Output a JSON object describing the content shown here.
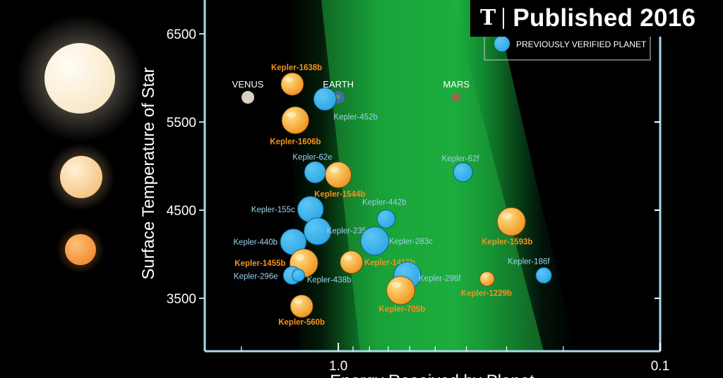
{
  "badge": {
    "logo": "T",
    "text": "Published 2016"
  },
  "colors": {
    "verified": "#2aa6e4",
    "kepler_new": "#f0901a",
    "axis": "#a8d8ec",
    "zone": "#1ea83c",
    "label_orange": "#f5921f",
    "label_blue": "#9fd0ec"
  },
  "chart_data": {
    "type": "scatter",
    "xlabel": "Energy Received by Planet",
    "ylabel": "Surface Temperature of Star",
    "xscale": "log-reversed",
    "xlim": [
      2.6,
      0.1
    ],
    "ylim": [
      2900,
      6900
    ],
    "x_ticks": [
      {
        "value": 1.0,
        "label": "1.0"
      },
      {
        "value": 0.1,
        "label": "0.1"
      }
    ],
    "y_ticks": [
      {
        "value": 6500,
        "label": "6500"
      },
      {
        "value": 5500,
        "label": "5500"
      },
      {
        "value": 4500,
        "label": "4500"
      },
      {
        "value": 3500,
        "label": "3500"
      }
    ],
    "legend": [
      {
        "label": "PREVIOUSLY VERIFIED PLANET",
        "kind": "verified"
      }
    ],
    "legend_position": "top-right",
    "stars": [
      {
        "kind": "hot",
        "temp": 6000
      },
      {
        "kind": "medium",
        "temp": 5000
      },
      {
        "kind": "cool",
        "temp": 4000
      }
    ],
    "solar_system": [
      {
        "name": "VENUS",
        "x": 1.91,
        "y": 5780
      },
      {
        "name": "EARTH",
        "x": 1.0,
        "y": 5780
      },
      {
        "name": "MARS",
        "x": 0.43,
        "y": 5780
      }
    ],
    "points": [
      {
        "name": "Kepler-1638b",
        "kind": "new",
        "x": 1.39,
        "y": 5930,
        "size": 1.0
      },
      {
        "name": "Kepler-452b",
        "kind": "verified",
        "x": 1.1,
        "y": 5760,
        "size": 1.0
      },
      {
        "name": "Kepler-1606b",
        "kind": "new",
        "x": 1.36,
        "y": 5520,
        "size": 1.2
      },
      {
        "name": "Kepler-62e",
        "kind": "verified",
        "x": 1.18,
        "y": 4930,
        "size": 0.95
      },
      {
        "name": "Kepler-1544b",
        "kind": "new",
        "x": 1.0,
        "y": 4900,
        "size": 1.15
      },
      {
        "name": "Kepler-62f",
        "kind": "verified",
        "x": 0.41,
        "y": 4930,
        "size": 0.85
      },
      {
        "name": "Kepler-155c",
        "kind": "verified",
        "x": 1.22,
        "y": 4510,
        "size": 1.15
      },
      {
        "name": "Kepler-442b",
        "kind": "verified",
        "x": 0.71,
        "y": 4400,
        "size": 0.8
      },
      {
        "name": "Kepler-235e",
        "kind": "verified",
        "x": 1.16,
        "y": 4260,
        "size": 1.2
      },
      {
        "name": "Kepler-440b",
        "kind": "verified",
        "x": 1.38,
        "y": 4140,
        "size": 1.15
      },
      {
        "name": "Kepler-283c",
        "kind": "verified",
        "x": 0.77,
        "y": 4150,
        "size": 1.25
      },
      {
        "name": "Kepler-1593b",
        "kind": "new",
        "x": 0.29,
        "y": 4370,
        "size": 1.25
      },
      {
        "name": "Kepler-1455b",
        "kind": "new",
        "x": 1.28,
        "y": 3900,
        "size": 1.25
      },
      {
        "name": "Kepler-1410b",
        "kind": "new",
        "x": 0.91,
        "y": 3910,
        "size": 1.0
      },
      {
        "name": "Kepler-296e",
        "kind": "verified",
        "x": 1.39,
        "y": 3760,
        "size": 0.8
      },
      {
        "name": "Kepler-438b",
        "kind": "verified",
        "x": 1.33,
        "y": 3760,
        "size": 0.55
      },
      {
        "name": "Kepler-296f",
        "kind": "verified",
        "x": 0.61,
        "y": 3760,
        "size": 1.2
      },
      {
        "name": "Kepler-705b",
        "kind": "new",
        "x": 0.64,
        "y": 3590,
        "size": 1.25
      },
      {
        "name": "Kepler-1229b",
        "kind": "new",
        "x": 0.345,
        "y": 3720,
        "size": 0.65
      },
      {
        "name": "Kepler-186f",
        "kind": "verified",
        "x": 0.23,
        "y": 3760,
        "size": 0.7
      },
      {
        "name": "Kepler-560b",
        "kind": "new",
        "x": 1.3,
        "y": 3410,
        "size": 1.0
      }
    ]
  }
}
